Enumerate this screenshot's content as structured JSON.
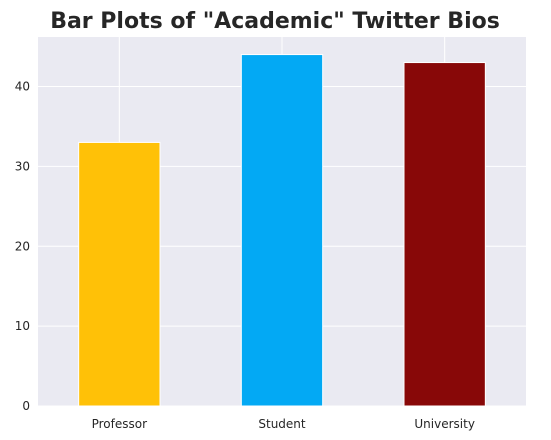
{
  "chart_data": {
    "type": "bar",
    "title": "Bar Plots of \"Academic\" Twitter Bios",
    "xlabel": "",
    "ylabel": "",
    "categories": [
      "Professor",
      "Student",
      "University"
    ],
    "values": [
      33,
      44,
      43
    ],
    "colors": [
      "#FFC107",
      "#03A9F4",
      "#880808"
    ],
    "ylim": [
      0,
      46.2
    ],
    "yticks": [
      0,
      10,
      20,
      30,
      40
    ],
    "grid": true,
    "background": "#EAEAF2",
    "grid_color": "#FFFFFF",
    "style": "seaborn-darkgrid"
  }
}
